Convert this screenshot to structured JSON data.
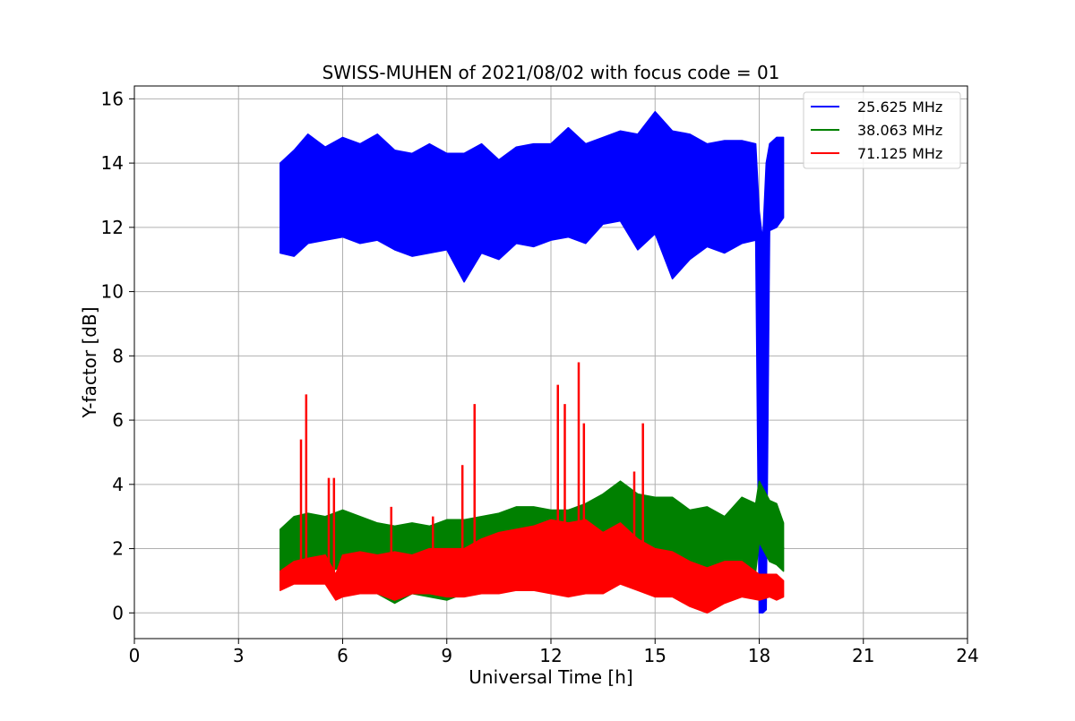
{
  "chart_data": {
    "type": "line",
    "title": "SWISS-MUHEN of 2021/08/02 with focus code = 01",
    "xlabel": "Universal Time [h]",
    "ylabel": "Y-factor [dB]",
    "xlim": [
      0,
      24
    ],
    "ylim": [
      -0.8,
      16.4
    ],
    "x_ticks": [
      0,
      3,
      6,
      9,
      12,
      15,
      18,
      21,
      24
    ],
    "y_ticks": [
      0,
      2,
      4,
      6,
      8,
      10,
      12,
      14,
      16
    ],
    "grid": true,
    "legend_position": "top-right",
    "series": [
      {
        "name": "25.625 MHz",
        "color": "#0000ff",
        "x": [
          4.2,
          4.6,
          5.0,
          5.5,
          6.0,
          6.5,
          7.0,
          7.5,
          8.0,
          8.5,
          9.0,
          9.5,
          10.0,
          10.5,
          11.0,
          11.5,
          12.0,
          12.5,
          13.0,
          13.5,
          14.0,
          14.5,
          15.0,
          15.5,
          16.0,
          16.5,
          17.0,
          17.5,
          17.9,
          18.0,
          18.1,
          18.2,
          18.3,
          18.5,
          18.7
        ],
        "values": [
          12.8,
          12.9,
          12.9,
          13.0,
          13.0,
          12.8,
          13.0,
          12.9,
          12.6,
          12.7,
          12.6,
          12.5,
          12.7,
          12.6,
          12.9,
          12.9,
          13.0,
          13.0,
          12.8,
          13.2,
          13.3,
          12.9,
          13.3,
          12.6,
          12.6,
          12.8,
          12.7,
          12.9,
          12.7,
          6.0,
          1.0,
          6.0,
          12.8,
          13.0,
          13.2
        ],
        "min": [
          11.2,
          11.1,
          11.5,
          11.6,
          11.7,
          11.5,
          11.6,
          11.3,
          11.1,
          11.2,
          11.3,
          10.3,
          11.2,
          11.0,
          11.5,
          11.4,
          11.6,
          11.7,
          11.5,
          12.1,
          12.2,
          11.3,
          11.8,
          10.4,
          11.0,
          11.4,
          11.2,
          11.5,
          11.6,
          0.0,
          0.0,
          0.1,
          11.9,
          12.0,
          12.3
        ],
        "max": [
          14.0,
          14.4,
          14.9,
          14.5,
          14.8,
          14.6,
          14.9,
          14.4,
          14.3,
          14.6,
          14.3,
          14.3,
          14.6,
          14.1,
          14.5,
          14.6,
          14.6,
          15.1,
          14.6,
          14.8,
          15.0,
          14.9,
          15.6,
          15.0,
          14.9,
          14.6,
          14.7,
          14.7,
          14.6,
          12.5,
          11.6,
          14.0,
          14.6,
          14.8,
          14.8
        ]
      },
      {
        "name": "38.063 MHz",
        "color": "#008000",
        "x": [
          4.2,
          4.6,
          5.0,
          5.5,
          6.0,
          6.5,
          7.0,
          7.5,
          8.0,
          8.5,
          9.0,
          9.5,
          10.0,
          10.5,
          11.0,
          11.5,
          12.0,
          12.5,
          13.0,
          13.5,
          14.0,
          14.5,
          15.0,
          15.5,
          16.0,
          16.5,
          17.0,
          17.5,
          17.9,
          18.0,
          18.3,
          18.5,
          18.7
        ],
        "values": [
          1.8,
          2.1,
          2.2,
          2.3,
          2.4,
          2.3,
          2.0,
          1.8,
          1.9,
          2.0,
          2.0,
          2.1,
          2.2,
          2.3,
          2.5,
          2.5,
          2.6,
          2.5,
          2.6,
          2.9,
          3.3,
          2.8,
          2.8,
          2.6,
          2.3,
          2.4,
          2.1,
          2.5,
          2.3,
          3.5,
          2.8,
          2.7,
          2.0
        ],
        "min": [
          0.8,
          1.2,
          1.3,
          1.3,
          1.4,
          1.3,
          0.6,
          0.3,
          0.6,
          0.5,
          0.4,
          0.6,
          0.8,
          0.9,
          1.2,
          1.2,
          1.3,
          1.0,
          1.2,
          1.6,
          2.1,
          1.5,
          1.3,
          1.4,
          0.6,
          0.8,
          0.7,
          1.2,
          1.3,
          2.2,
          1.6,
          1.5,
          1.3
        ],
        "max": [
          2.6,
          3.0,
          3.1,
          3.0,
          3.2,
          3.0,
          2.8,
          2.7,
          2.8,
          2.7,
          2.9,
          2.9,
          3.0,
          3.1,
          3.3,
          3.3,
          3.2,
          3.2,
          3.4,
          3.7,
          4.1,
          3.7,
          3.6,
          3.6,
          3.2,
          3.3,
          3.0,
          3.6,
          3.4,
          4.1,
          3.5,
          3.4,
          2.8
        ]
      },
      {
        "name": "71.125 MHz",
        "color": "#ff0000",
        "x": [
          4.2,
          4.6,
          5.0,
          5.5,
          5.8,
          6.0,
          6.5,
          7.0,
          7.5,
          8.0,
          8.5,
          9.0,
          9.5,
          10.0,
          10.5,
          11.0,
          11.5,
          12.0,
          12.5,
          13.0,
          13.5,
          14.0,
          14.5,
          15.0,
          15.5,
          16.0,
          16.5,
          17.0,
          17.5,
          18.0,
          18.3,
          18.5,
          18.7
        ],
        "values": [
          1.0,
          1.2,
          1.3,
          1.3,
          0.8,
          1.0,
          1.0,
          1.1,
          1.0,
          1.0,
          1.1,
          1.1,
          1.0,
          1.2,
          1.2,
          1.4,
          1.3,
          1.5,
          1.4,
          1.5,
          1.2,
          1.6,
          1.3,
          1.2,
          1.1,
          0.9,
          0.7,
          1.0,
          0.9,
          0.7,
          0.8,
          0.7,
          0.7
        ],
        "min": [
          0.7,
          0.9,
          0.9,
          0.9,
          0.4,
          0.5,
          0.6,
          0.6,
          0.4,
          0.6,
          0.6,
          0.5,
          0.5,
          0.6,
          0.6,
          0.7,
          0.7,
          0.6,
          0.5,
          0.6,
          0.6,
          0.9,
          0.7,
          0.5,
          0.5,
          0.2,
          0.0,
          0.3,
          0.5,
          0.4,
          0.5,
          0.4,
          0.5
        ],
        "max": [
          1.3,
          1.6,
          1.7,
          1.8,
          1.2,
          1.8,
          1.9,
          1.8,
          1.9,
          1.8,
          2.0,
          2.0,
          2.0,
          2.3,
          2.5,
          2.6,
          2.7,
          2.9,
          2.8,
          2.9,
          2.5,
          2.8,
          2.3,
          2.0,
          1.9,
          1.6,
          1.4,
          1.6,
          1.6,
          1.2,
          1.2,
          1.2,
          1.0
        ],
        "spikes_x": [
          4.8,
          4.95,
          5.6,
          5.75,
          7.4,
          8.6,
          9.45,
          9.8,
          12.2,
          12.4,
          12.8,
          12.95,
          14.4,
          14.65
        ],
        "spikes_y": [
          5.4,
          6.8,
          4.2,
          4.2,
          3.3,
          3.0,
          4.6,
          6.5,
          7.1,
          6.5,
          7.8,
          5.9,
          4.4,
          5.9
        ]
      }
    ]
  }
}
